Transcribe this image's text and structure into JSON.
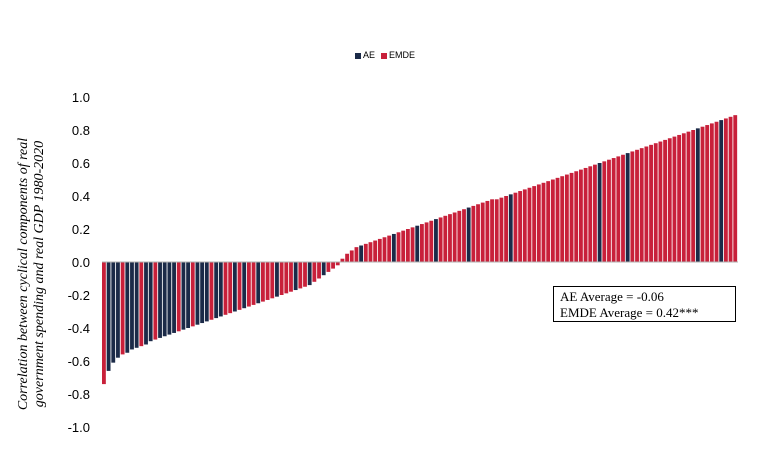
{
  "chart_data": {
    "type": "bar",
    "legend": [
      {
        "label": "AE",
        "color": "#1b2a48"
      },
      {
        "label": "EMDE",
        "color": "#c8203a"
      }
    ],
    "ylabel": "Correlation between cyclical components of real government spending and real GDP 1980-2020",
    "ylabel_lines": [
      "Correlation between cyclical components of real",
      "government spending and real GDP 1980-2020"
    ],
    "ylim": [
      -1.0,
      1.0
    ],
    "yticks": [
      "1.0",
      "0.8",
      "0.6",
      "0.4",
      "0.2",
      "0.0",
      "-0.2",
      "-0.4",
      "-0.6",
      "-0.8",
      "-1.0"
    ],
    "grid": false,
    "legend_position": "top-center",
    "values": [
      -0.74,
      -0.66,
      -0.61,
      -0.58,
      -0.56,
      -0.55,
      -0.53,
      -0.52,
      -0.51,
      -0.5,
      -0.48,
      -0.47,
      -0.46,
      -0.45,
      -0.44,
      -0.43,
      -0.42,
      -0.41,
      -0.4,
      -0.39,
      -0.38,
      -0.37,
      -0.36,
      -0.35,
      -0.34,
      -0.33,
      -0.32,
      -0.31,
      -0.3,
      -0.29,
      -0.28,
      -0.27,
      -0.26,
      -0.25,
      -0.24,
      -0.23,
      -0.22,
      -0.21,
      -0.2,
      -0.19,
      -0.18,
      -0.17,
      -0.16,
      -0.15,
      -0.14,
      -0.12,
      -0.1,
      -0.08,
      -0.06,
      -0.04,
      -0.02,
      0.02,
      0.05,
      0.07,
      0.09,
      0.1,
      0.11,
      0.12,
      0.13,
      0.14,
      0.15,
      0.16,
      0.17,
      0.18,
      0.19,
      0.2,
      0.21,
      0.22,
      0.23,
      0.24,
      0.25,
      0.26,
      0.27,
      0.28,
      0.29,
      0.3,
      0.31,
      0.32,
      0.33,
      0.34,
      0.35,
      0.36,
      0.37,
      0.38,
      0.38,
      0.39,
      0.4,
      0.41,
      0.42,
      0.43,
      0.44,
      0.45,
      0.46,
      0.47,
      0.48,
      0.49,
      0.5,
      0.51,
      0.52,
      0.53,
      0.54,
      0.55,
      0.56,
      0.57,
      0.58,
      0.59,
      0.6,
      0.61,
      0.62,
      0.63,
      0.64,
      0.65,
      0.66,
      0.67,
      0.68,
      0.69,
      0.7,
      0.71,
      0.72,
      0.73,
      0.74,
      0.75,
      0.76,
      0.77,
      0.78,
      0.79,
      0.8,
      0.81,
      0.82,
      0.83,
      0.84,
      0.85,
      0.86,
      0.87,
      0.88,
      0.89
    ],
    "groups": [
      "EMDE",
      "AE",
      "AE",
      "AE",
      "EMDE",
      "AE",
      "AE",
      "AE",
      "EMDE",
      "AE",
      "AE",
      "EMDE",
      "AE",
      "AE",
      "AE",
      "AE",
      "EMDE",
      "AE",
      "AE",
      "EMDE",
      "AE",
      "AE",
      "AE",
      "EMDE",
      "AE",
      "AE",
      "EMDE",
      "EMDE",
      "AE",
      "EMDE",
      "AE",
      "EMDE",
      "EMDE",
      "AE",
      "EMDE",
      "EMDE",
      "EMDE",
      "AE",
      "EMDE",
      "EMDE",
      "EMDE",
      "AE",
      "EMDE",
      "EMDE",
      "AE",
      "EMDE",
      "EMDE",
      "AE",
      "EMDE",
      "EMDE",
      "EMDE",
      "EMDE",
      "EMDE",
      "EMDE",
      "EMDE",
      "AE",
      "EMDE",
      "EMDE",
      "EMDE",
      "EMDE",
      "EMDE",
      "EMDE",
      "AE",
      "EMDE",
      "EMDE",
      "EMDE",
      "EMDE",
      "AE",
      "EMDE",
      "EMDE",
      "EMDE",
      "AE",
      "EMDE",
      "EMDE",
      "EMDE",
      "EMDE",
      "EMDE",
      "EMDE",
      "AE",
      "EMDE",
      "EMDE",
      "EMDE",
      "EMDE",
      "EMDE",
      "EMDE",
      "EMDE",
      "EMDE",
      "AE",
      "EMDE",
      "EMDE",
      "EMDE",
      "EMDE",
      "EMDE",
      "EMDE",
      "EMDE",
      "EMDE",
      "EMDE",
      "EMDE",
      "EMDE",
      "EMDE",
      "EMDE",
      "EMDE",
      "EMDE",
      "EMDE",
      "EMDE",
      "EMDE",
      "AE",
      "EMDE",
      "EMDE",
      "EMDE",
      "EMDE",
      "EMDE",
      "AE",
      "EMDE",
      "EMDE",
      "EMDE",
      "EMDE",
      "EMDE",
      "EMDE",
      "EMDE",
      "EMDE",
      "EMDE",
      "EMDE",
      "EMDE",
      "EMDE",
      "EMDE",
      "EMDE",
      "AE",
      "EMDE",
      "EMDE",
      "EMDE",
      "EMDE",
      "AE",
      "EMDE",
      "EMDE",
      "EMDE"
    ],
    "annotations": [
      "AE Average = -0.06",
      "EMDE Average = 0.42***"
    ]
  }
}
